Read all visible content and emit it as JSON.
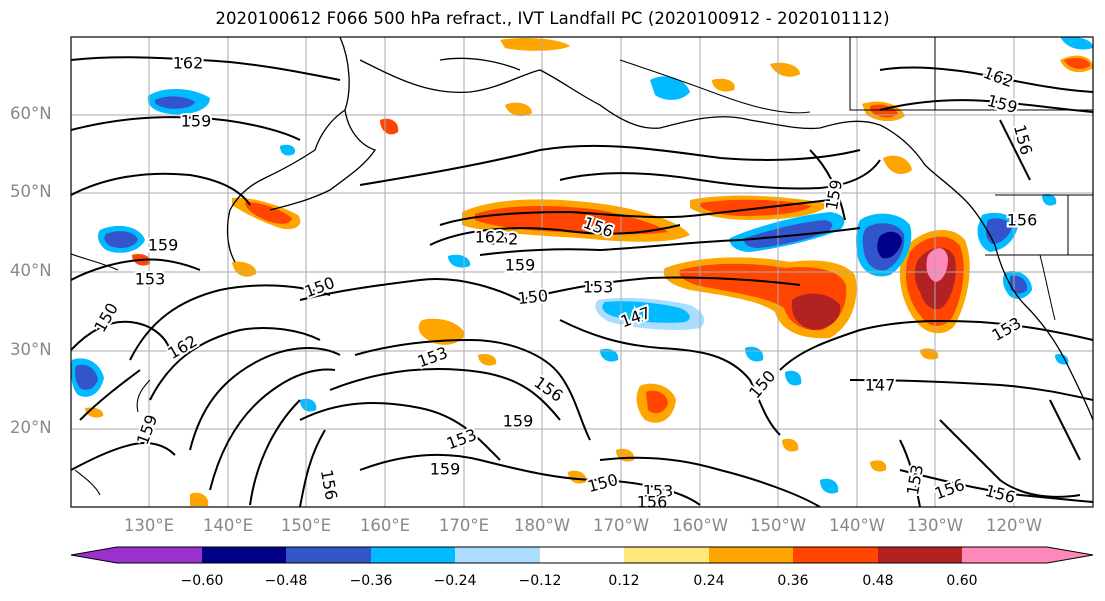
{
  "title": "2020100612 F066 500 hPa refract., IVT Landfall PC (2020100912 - 2020101112)",
  "lat_labels": [
    "60°N",
    "50°N",
    "40°N",
    "30°N",
    "20°N"
  ],
  "lon_labels": [
    "130°E",
    "140°E",
    "150°E",
    "160°E",
    "170°E",
    "180°W",
    "170°W",
    "160°W",
    "150°W",
    "140°W",
    "130°W",
    "120°W"
  ],
  "contour_labels": [
    "162",
    "159",
    "159",
    "162",
    "159",
    "156",
    "150",
    "153",
    "150",
    "153",
    "147",
    "153",
    "156",
    "159",
    "153",
    "159",
    "150",
    "153",
    "156",
    "147",
    "150",
    "153",
    "156",
    "156",
    "153",
    "159",
    "162",
    "162",
    "159",
    "156",
    "156",
    "159",
    "150",
    "156",
    "162"
  ],
  "colorbar": {
    "ticks": [
      "−0.60",
      "−0.48",
      "−0.36",
      "−0.24",
      "−0.12",
      "0.12",
      "0.24",
      "0.36",
      "0.48",
      "0.60"
    ],
    "colors": [
      "#9b30d0",
      "#000088",
      "#3355cc",
      "#00bbff",
      "#aaddff",
      "#ffffff",
      "#ffe77a",
      "#ffa500",
      "#ff4500",
      "#b22222",
      "#ff88bb"
    ]
  },
  "map_colors": {
    "frame": "#000000",
    "grid": "#999999",
    "contour": "#000000",
    "coast": "#000000"
  }
}
